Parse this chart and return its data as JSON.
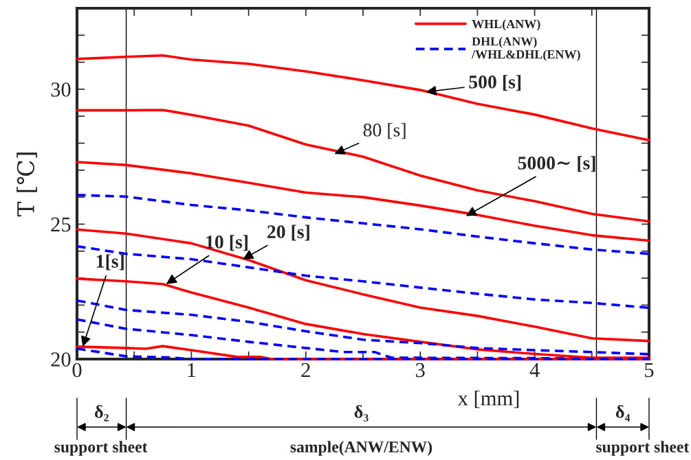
{
  "chart_data": {
    "type": "line",
    "xlabel": "x [mm]",
    "ylabel": "T [℃]",
    "xlim": [
      0,
      5
    ],
    "ylim": [
      20,
      33
    ],
    "xticks": [
      0,
      {
        "value": 0.5,
        "label": null
      },
      1,
      {
        "value": 1.5,
        "label": null
      },
      2,
      {
        "value": 2.5,
        "label": null
      },
      3,
      {
        "value": 3.5,
        "label": null
      },
      4,
      {
        "value": 4.5,
        "label": null
      },
      5
    ],
    "yticks": [
      20,
      {
        "value": 21,
        "label": null
      },
      {
        "value": 22,
        "label": null
      },
      {
        "value": 23,
        "label": null
      },
      {
        "value": 24,
        "label": null
      },
      25,
      {
        "value": 26,
        "label": null
      },
      {
        "value": 27,
        "label": null
      },
      {
        "value": 28,
        "label": null
      },
      {
        "value": 29,
        "label": null
      },
      30,
      {
        "value": 31,
        "label": null
      },
      {
        "value": 32,
        "label": null
      },
      {
        "value": 33,
        "label": null
      }
    ],
    "grid": false,
    "legend": "top right",
    "marker": "none",
    "series": [
      {
        "name": "WHL(ANW)",
        "color": "#ff0000",
        "line_style": "solid",
        "x": [
          0,
          0.43,
          0.75,
          1,
          1.5,
          2,
          2.5,
          3,
          3.5,
          4,
          4.5,
          5
        ],
        "values": [
          31.12,
          31.2,
          31.25,
          31.1,
          30.94,
          30.66,
          30.33,
          29.97,
          29.46,
          29.06,
          28.55,
          28.11
        ]
      },
      {
        "color": "#ff0000",
        "line_style": "solid",
        "x": [
          0,
          0.43,
          0.75,
          1,
          1.5,
          2,
          2.5,
          3,
          3.5,
          4,
          4.5,
          5
        ],
        "values": [
          29.22,
          29.22,
          29.23,
          29.05,
          28.65,
          27.95,
          27.5,
          26.8,
          26.25,
          25.85,
          25.38,
          25.1
        ]
      },
      {
        "color": "#ff0000",
        "line_style": "solid",
        "x": [
          0,
          0.43,
          1,
          1.5,
          2,
          2.5,
          3,
          3.5,
          4,
          4.5,
          5
        ],
        "values": [
          27.3,
          27.19,
          26.88,
          26.53,
          26.17,
          26.0,
          25.69,
          25.34,
          24.94,
          24.59,
          24.39
        ]
      },
      {
        "name": "DHL(ANW)\n/WHL&DHL(ENW)",
        "color": "#0000ff",
        "line_style": "dashed",
        "x": [
          0,
          0.43,
          1,
          1.5,
          2,
          2.5,
          3,
          3.5,
          4,
          4.5,
          5
        ],
        "values": [
          26.08,
          26.02,
          25.71,
          25.51,
          25.25,
          25.03,
          24.81,
          24.54,
          24.29,
          24.06,
          23.9
        ]
      },
      {
        "color": "#ff0000",
        "line_style": "solid",
        "x": [
          0,
          0.43,
          1,
          1.5,
          2,
          2.5,
          3,
          3.5,
          4,
          4.5,
          5
        ],
        "values": [
          24.8,
          24.65,
          24.29,
          23.67,
          22.92,
          22.4,
          21.91,
          21.6,
          21.2,
          20.77,
          20.67
        ]
      },
      {
        "color": "#0000ff",
        "line_style": "dashed",
        "x": [
          0,
          0.43,
          1,
          1.5,
          2,
          2.5,
          3,
          3.5,
          4,
          4.5,
          5
        ],
        "values": [
          24.18,
          23.9,
          23.7,
          23.4,
          23.09,
          22.88,
          22.65,
          22.42,
          22.21,
          22.08,
          21.9
        ]
      },
      {
        "color": "#ff0000",
        "line_style": "solid",
        "x": [
          0,
          0.43,
          0.75,
          1,
          1.5,
          2,
          2.5,
          3,
          3.5,
          4,
          4.5,
          5
        ],
        "values": [
          22.98,
          22.88,
          22.78,
          22.47,
          21.91,
          21.3,
          20.93,
          20.64,
          20.36,
          20.19,
          20.05,
          20.05
        ]
      },
      {
        "color": "#0000ff",
        "line_style": "dashed",
        "x": [
          0,
          0.43,
          1,
          1.5,
          2,
          2.5,
          3,
          3.5,
          4,
          4.5,
          5
        ],
        "values": [
          22.17,
          21.82,
          21.64,
          21.38,
          21.03,
          20.72,
          20.59,
          20.41,
          20.33,
          20.26,
          20.18
        ]
      },
      {
        "color": "#0000ff",
        "line_style": "dashed",
        "x": [
          0,
          0.43,
          1,
          1.5,
          2,
          2.33,
          2.6,
          2.75,
          4.3,
          4.5,
          5
        ],
        "values": [
          21.47,
          21.12,
          20.89,
          20.64,
          20.41,
          20.26,
          20.26,
          20.05,
          20.03,
          20.0,
          20.0
        ]
      },
      {
        "color": "#ff0000",
        "line_style": "solid",
        "x": [
          0,
          0.43,
          0.6,
          0.75,
          1,
          1.4,
          1.6,
          1.7,
          5
        ],
        "values": [
          20.46,
          20.41,
          20.38,
          20.48,
          20.33,
          20.08,
          20.08,
          20.0,
          20.0
        ]
      },
      {
        "color": "#0000ff",
        "line_style": "dashed",
        "x": [
          0,
          0.43,
          0.8,
          1,
          5
        ],
        "values": [
          20.39,
          20.1,
          20.06,
          20.0,
          20.0
        ]
      }
    ],
    "ref_lines": [
      {
        "axis": "x",
        "value": 0.43,
        "color": "#000000"
      },
      {
        "axis": "x",
        "value": 4.54,
        "color": "#000000"
      }
    ],
    "annotations": [
      {
        "text": "1[s]",
        "x": 0.05,
        "y": 20.46
      },
      {
        "text": "10 [s]",
        "x": 0.78,
        "y": 22.78
      },
      {
        "text": "20 [s]",
        "x": 1.45,
        "y": 23.7
      },
      {
        "text": "80 [s]",
        "x": 2.25,
        "y": 27.6
      },
      {
        "text": "500 [s]",
        "x": 3.05,
        "y": 29.9
      },
      {
        "text": "5000∼ [s]",
        "x": 3.4,
        "y": 25.3
      },
      "δ₂",
      "δ₃",
      "δ₄",
      "support sheet",
      "sample(ANW/ENW)",
      "support sheet"
    ]
  }
}
